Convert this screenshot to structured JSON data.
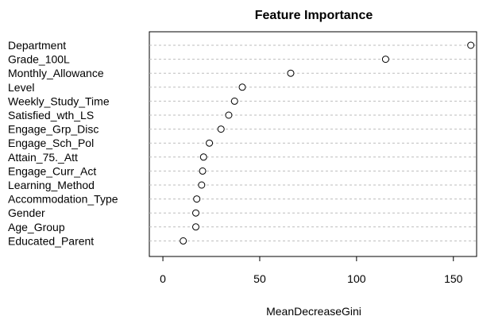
{
  "chart_data": {
    "type": "scatter",
    "title": "Feature Importance",
    "xlabel": "MeanDecreaseGini",
    "ylabel": "",
    "categories": [
      "Department",
      "Grade_100L",
      "Monthly_Allowance",
      "Level",
      "Weekly_Study_Time",
      "Satisfied_wth_LS",
      "Engage_Grp_Disc",
      "Engage_Sch_Pol",
      "Attain_75._Att",
      "Engage_Curr_Act",
      "Learning_Method",
      "Accommodation_Type",
      "Gender",
      "Age_Group",
      "Educated_Parent"
    ],
    "values": [
      159,
      115,
      66,
      41,
      37,
      34,
      30,
      24,
      21,
      20.5,
      20,
      17.5,
      17,
      17,
      10.5
    ],
    "xlim": [
      -7,
      162
    ],
    "xticks": [
      0,
      50,
      100,
      150
    ],
    "grid": "horizontal dotted guide per category",
    "legend": "none"
  }
}
